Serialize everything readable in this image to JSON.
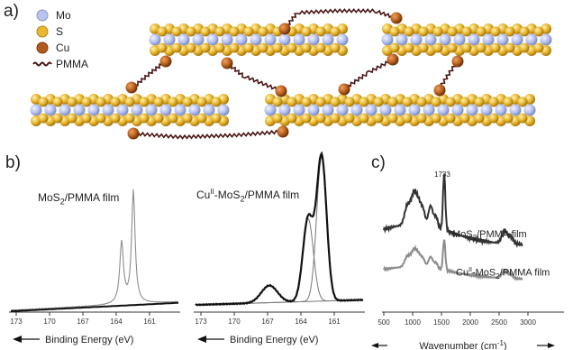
{
  "panel_labels": {
    "a": "a)",
    "b": "b)",
    "c": "c)"
  },
  "legend": {
    "items": [
      {
        "label": "Mo",
        "color": "#b8c4ec"
      },
      {
        "label": "S",
        "color": "#e8b630"
      },
      {
        "label": "Cu",
        "color": "#b25a1e"
      },
      {
        "label": "PMMA",
        "color": "#4a1414"
      }
    ]
  },
  "panel_b_left": {
    "label_main": "MoS",
    "label_sub": "2",
    "label_rest": "/PMMA film"
  },
  "panel_b_right": {
    "label_pre": "Cu",
    "label_sup": "II",
    "label_main": "-MoS",
    "label_sub": "2",
    "label_rest": "/PMMA film"
  },
  "panel_c": {
    "peak_label": "1733",
    "label_top_main": "MoS",
    "label_top_sub": "2",
    "label_top_rest": "/PMMA film",
    "label_bottom_pre": "Cu",
    "label_bottom_sup": "II",
    "label_bottom_main": "-MoS",
    "label_bottom_sub": "2",
    "label_bottom_rest": "/PMMA film"
  },
  "chart_data": [
    {
      "type": "line",
      "title": "",
      "xlabel": "Binding Energy (eV)",
      "ylabel": "",
      "xlim": [
        173,
        160
      ],
      "x_ticks": [
        "173",
        "170",
        "167",
        "164",
        "161"
      ],
      "series": [
        {
          "name": "MoS2/PMMA film",
          "x": [
            173,
            164,
            163.3,
            162.5,
            162,
            161.6,
            161.3,
            161
          ],
          "y": [
            0,
            0.05,
            0.55,
            0.12,
            0.4,
            1.0,
            0.3,
            0.05
          ]
        }
      ]
    },
    {
      "type": "line",
      "title": "",
      "xlabel": "Binding Energy (eV)",
      "ylabel": "",
      "xlim": [
        173,
        160
      ],
      "x_ticks": [
        "173",
        "170",
        "167",
        "164",
        "161"
      ],
      "series": [
        {
          "name": "CuII-MoS2/PMMA film",
          "x": [
            173,
            169,
            167,
            164,
            163.2,
            162.2,
            161.6,
            161
          ],
          "y": [
            0.05,
            0.2,
            0.08,
            0.15,
            0.6,
            0.7,
            1.0,
            0.25
          ]
        }
      ]
    },
    {
      "type": "line",
      "title": "",
      "xlabel": "Wavenumber (cm⁻¹)",
      "ylabel": "",
      "xlim": [
        500,
        3300
      ],
      "x_ticks": [
        "500",
        "1000",
        "1500",
        "2000",
        "2500",
        "3000"
      ],
      "series": [
        {
          "name": "MoS2/PMMA film",
          "x": [
            500,
            900,
            1150,
            1450,
            1733,
            2000,
            2950,
            3300
          ],
          "y": [
            0.45,
            0.65,
            0.8,
            0.7,
            1.0,
            0.45,
            0.52,
            0.35
          ]
        },
        {
          "name": "CuII-MoS2/PMMA film",
          "x": [
            500,
            900,
            1150,
            1450,
            1733,
            2000,
            2950,
            3300
          ],
          "y": [
            0.2,
            0.35,
            0.45,
            0.38,
            0.55,
            0.22,
            0.3,
            0.1
          ]
        }
      ]
    }
  ]
}
